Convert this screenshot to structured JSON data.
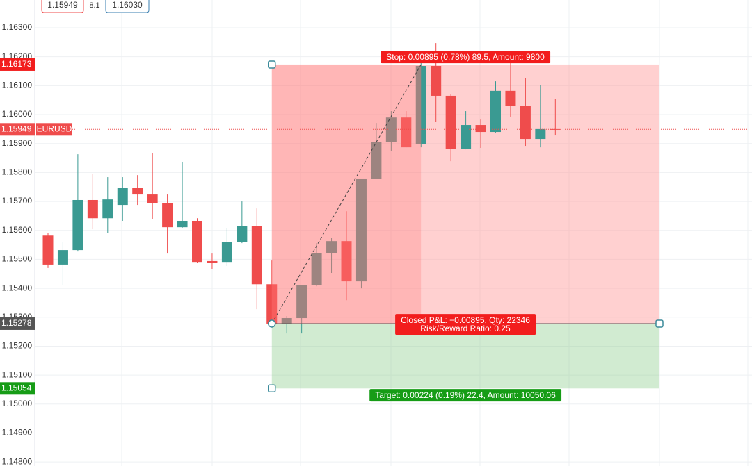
{
  "chart_data": {
    "type": "candlestick",
    "symbol": "EURUSD",
    "header": {
      "bid": 1.15949,
      "spread": 8.1,
      "ask": {
        "value": 1.1603,
        "label": "1.16030"
      }
    },
    "ylim": [
      1.14786,
      1.16396
    ],
    "yticks": [
      {
        "value": 1.148,
        "label": "1.14800"
      },
      {
        "value": 1.149,
        "label": "1.14900"
      },
      {
        "value": 1.15,
        "label": "1.15000"
      },
      {
        "value": 1.151,
        "label": "1.15100"
      },
      {
        "value": 1.152,
        "label": "1.15200"
      },
      {
        "value": 1.153,
        "label": "1.15300"
      },
      {
        "value": 1.154,
        "label": "1.15400"
      },
      {
        "value": 1.155,
        "label": "1.15500"
      },
      {
        "value": 1.156,
        "label": "1.15600"
      },
      {
        "value": 1.157,
        "label": "1.15700"
      },
      {
        "value": 1.158,
        "label": "1.15800"
      },
      {
        "value": 1.159,
        "label": "1.15900"
      },
      {
        "value": 1.16,
        "label": "1.16000"
      },
      {
        "value": 1.161,
        "label": "1.16100"
      },
      {
        "value": 1.162,
        "label": "1.16200"
      },
      {
        "value": 1.163,
        "label": "1.16300"
      }
    ],
    "grid": true,
    "up_color": "#3a9a92",
    "down_color": "#ef4c4c",
    "open": [
      1.15582,
      1.15482,
      1.15532,
      1.15705,
      1.15642,
      1.15688,
      1.15746,
      1.15724,
      1.15695,
      1.15611,
      1.15633,
      1.15494,
      1.15491,
      1.15561,
      1.15616,
      1.15414,
      1.15278,
      1.15297,
      1.1541,
      1.15522,
      1.15563,
      1.15424,
      1.15777,
      1.15906,
      1.1599,
      1.15897,
      1.16168,
      1.16065,
      1.15882,
      1.15964,
      1.1594,
      1.16082,
      1.16029,
      1.15916,
      1.1595
    ],
    "high": [
      1.1559,
      1.15561,
      1.15863,
      1.15796,
      1.15784,
      1.15784,
      1.15791,
      1.15866,
      1.15724,
      1.15837,
      1.15642,
      1.1552,
      1.15609,
      1.157,
      1.15676,
      1.15496,
      1.15304,
      1.15412,
      1.15556,
      1.15573,
      1.15666,
      1.15777,
      1.15971,
      1.16012,
      1.16012,
      1.1618,
      1.16247,
      1.1607,
      1.16012,
      1.15983,
      1.16115,
      1.16192,
      1.16125,
      1.16101,
      1.16055
    ],
    "low": [
      1.1547,
      1.15412,
      1.15527,
      1.15604,
      1.1559,
      1.15633,
      1.15688,
      1.15638,
      1.1552,
      1.15609,
      1.15489,
      1.15465,
      1.15477,
      1.15556,
      1.15328,
      1.15268,
      1.15244,
      1.15244,
      1.15407,
      1.15453,
      1.15359,
      1.154,
      1.15777,
      1.15873,
      1.15887,
      1.15887,
      1.15976,
      1.15839,
      1.1588,
      1.15885,
      1.15938,
      1.15993,
      1.15892,
      1.15887,
      1.15928
    ],
    "close": [
      1.15482,
      1.15532,
      1.15705,
      1.15642,
      1.15707,
      1.15746,
      1.15724,
      1.15695,
      1.15611,
      1.15633,
      1.15491,
      1.15489,
      1.15561,
      1.15616,
      1.15414,
      1.15278,
      1.15297,
      1.15412,
      1.15522,
      1.15563,
      1.15424,
      1.15777,
      1.15906,
      1.1599,
      1.15887,
      1.16168,
      1.16065,
      1.15882,
      1.15964,
      1.1594,
      1.16082,
      1.16029,
      1.15916,
      1.1595,
      1.15949
    ],
    "position": {
      "entry": 1.15278,
      "stop": 1.16173,
      "target": 1.15054,
      "stop_label": "Stop: 0.00895 (0.78%) 89.5, Amount: 9800",
      "pnl_label": "Closed P&L: −0.00895, Qty: 22346",
      "ratio_label": "Risk/Reward Ratio: 0.25",
      "target_label": "Target: 0.00224 (0.19%) 22.4, Amount: 10050.06"
    }
  }
}
